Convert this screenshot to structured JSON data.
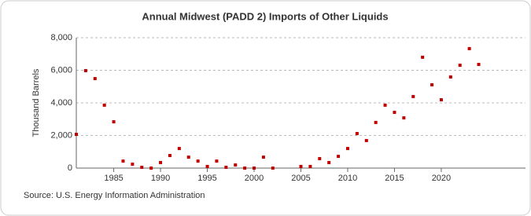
{
  "chart_data": {
    "type": "scatter",
    "title": "Annual Midwest (PADD 2) Imports of Other Liquids",
    "y_label": "Thousand Barrels",
    "source": "Source: U.S. Energy Information Administration",
    "color": "#c00000",
    "grid": true,
    "x": [
      1981,
      1982,
      1983,
      1984,
      1985,
      1986,
      1987,
      1988,
      1989,
      1990,
      1991,
      1992,
      1993,
      1994,
      1995,
      1996,
      1997,
      1998,
      1999,
      2000,
      2001,
      2002,
      2005,
      2006,
      2007,
      2008,
      2009,
      2010,
      2011,
      2012,
      2013,
      2014,
      2015,
      2016,
      2017,
      2018,
      2019,
      2020,
      2021,
      2022,
      2023,
      2024
    ],
    "values": [
      2070,
      5980,
      5490,
      3860,
      2840,
      430,
      240,
      50,
      0,
      340,
      770,
      1200,
      670,
      430,
      100,
      430,
      50,
      190,
      0,
      0,
      670,
      0,
      100,
      100,
      580,
      340,
      720,
      1200,
      2120,
      1690,
      2800,
      3860,
      3420,
      3080,
      4390,
      6800,
      5110,
      4190,
      5590,
      6310,
      7330,
      6360
    ],
    "xlim": [
      1981,
      2029
    ],
    "xticks": [
      1985,
      1990,
      1995,
      2000,
      2005,
      2010,
      2015,
      2020
    ],
    "ylim": [
      0,
      8000
    ],
    "yticks": [
      0,
      {
        "value": 2000,
        "label": "2,000"
      },
      {
        "value": 4000,
        "label": "4,000"
      },
      {
        "value": 6000,
        "label": "6,000"
      },
      {
        "value": 8000,
        "label": "8,000"
      }
    ]
  }
}
